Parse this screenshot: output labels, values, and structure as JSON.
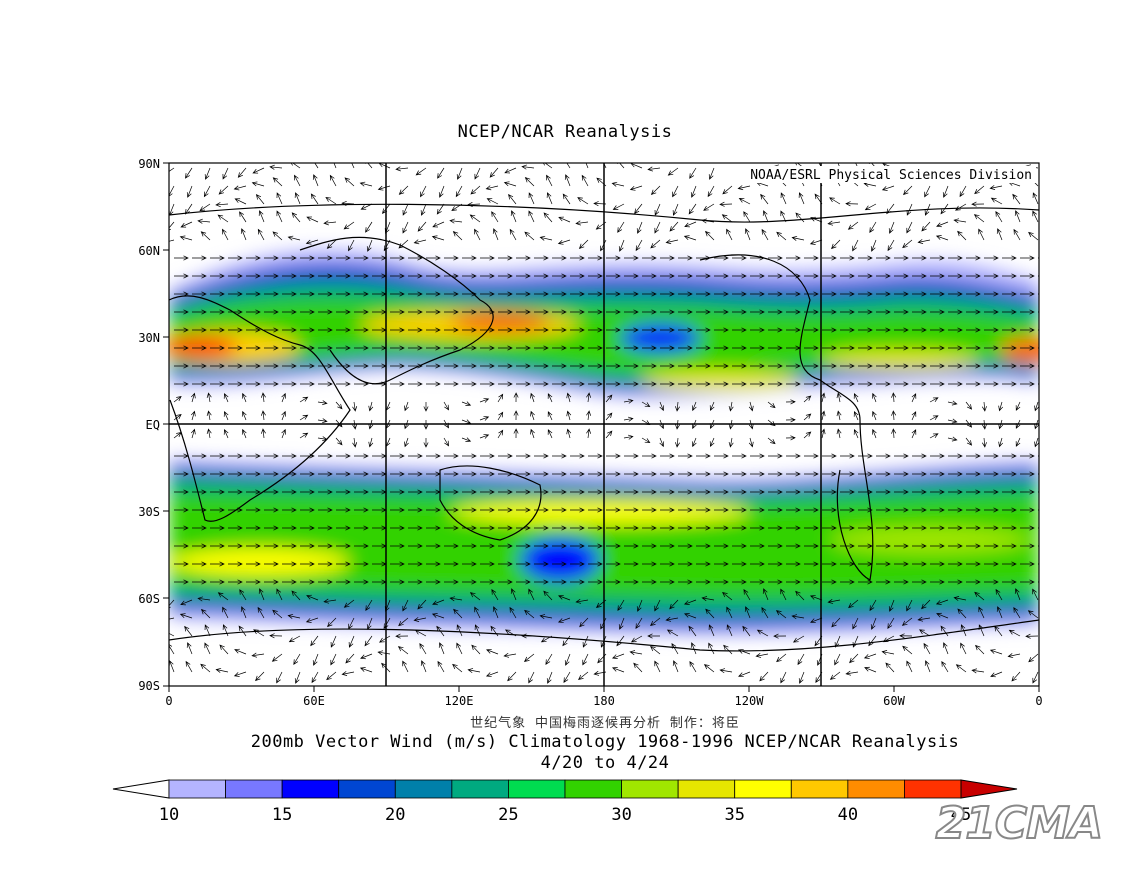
{
  "title": "NCEP/NCAR Reanalysis",
  "credit": "NOAA/ESRL Physical Sciences Division",
  "lat_labels": [
    "90N",
    "60N",
    "30N",
    "EQ",
    "30S",
    "60S",
    "90S"
  ],
  "lon_labels": [
    "0",
    "60E",
    "120E",
    "180",
    "120W",
    "60W",
    "0"
  ],
  "caption_cn": "世纪气象  中国梅雨逐候再分析  制作：将臣",
  "caption_main": "200mb Vector Wind (m/s) Climatology 1968-1996 NCEP/NCAR Reanalysis",
  "caption_dates": "4/20  to 4/24",
  "colorbar": {
    "labels": [
      "10",
      "15",
      "20",
      "25",
      "30",
      "35",
      "40",
      "45"
    ],
    "colors": [
      "#b4b4ff",
      "#7878ff",
      "#0000ff",
      "#0046d2",
      "#0080aa",
      "#00aa80",
      "#00dc50",
      "#32d200",
      "#a0e600",
      "#e6e600",
      "#ffff00",
      "#ffc800",
      "#ff8c00",
      "#ff3200",
      "#c80000"
    ]
  },
  "watermark": "21CMA",
  "colors": {
    "background": "#ffffff",
    "frame": "#000000"
  }
}
